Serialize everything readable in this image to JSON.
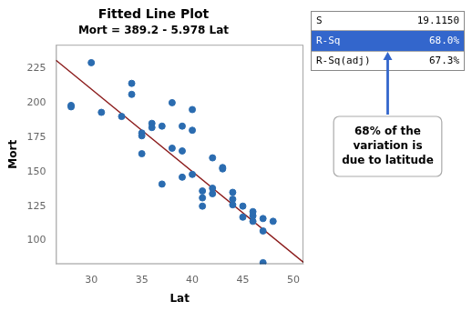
{
  "chart_data": {
    "type": "scatter",
    "title": "Fitted Line Plot",
    "subtitle": "Mort = 389.2 - 5.978 Lat",
    "x_label": "Lat",
    "y_label": "Mort",
    "xlim": [
      26.5,
      51
    ],
    "ylim": [
      83,
      242
    ],
    "xticks": [
      30,
      35,
      40,
      45,
      50
    ],
    "yticks": [
      100,
      125,
      150,
      175,
      200,
      225
    ],
    "grid": false,
    "series": [
      {
        "type": "scatter",
        "color": "#2b6cb0",
        "x": [
          28,
          28,
          30,
          31,
          33,
          34,
          34,
          35,
          35,
          35,
          36,
          36,
          37,
          37,
          38,
          38,
          39,
          39,
          39,
          40,
          40,
          40,
          41,
          41,
          41,
          42,
          42,
          42,
          43,
          43,
          44,
          44,
          44,
          45,
          45,
          46,
          46,
          46,
          47,
          47,
          47,
          48
        ],
        "values": [
          198,
          197,
          229,
          193,
          190,
          214,
          206,
          178,
          163,
          176,
          185,
          182,
          141,
          183,
          200,
          167,
          146,
          165,
          183,
          148,
          180,
          195,
          131,
          136,
          125,
          160,
          134,
          138,
          152,
          153,
          135,
          130,
          126,
          117,
          125,
          118,
          121,
          114,
          84,
          116,
          107,
          114
        ]
      },
      {
        "type": "line",
        "color": "#8b1a1a",
        "x": [
          26.5,
          51
        ],
        "values": [
          230.783,
          84.322
        ]
      }
    ],
    "table": [
      {
        "label": "S",
        "value": "19.1150"
      },
      {
        "label": "R-Sq",
        "value": "68.0%",
        "color": "#3366cc"
      },
      {
        "label": "R-Sq(adj)",
        "value": "67.3%"
      }
    ],
    "annotation": "68% of the\nvariation is\ndue to latitude"
  }
}
